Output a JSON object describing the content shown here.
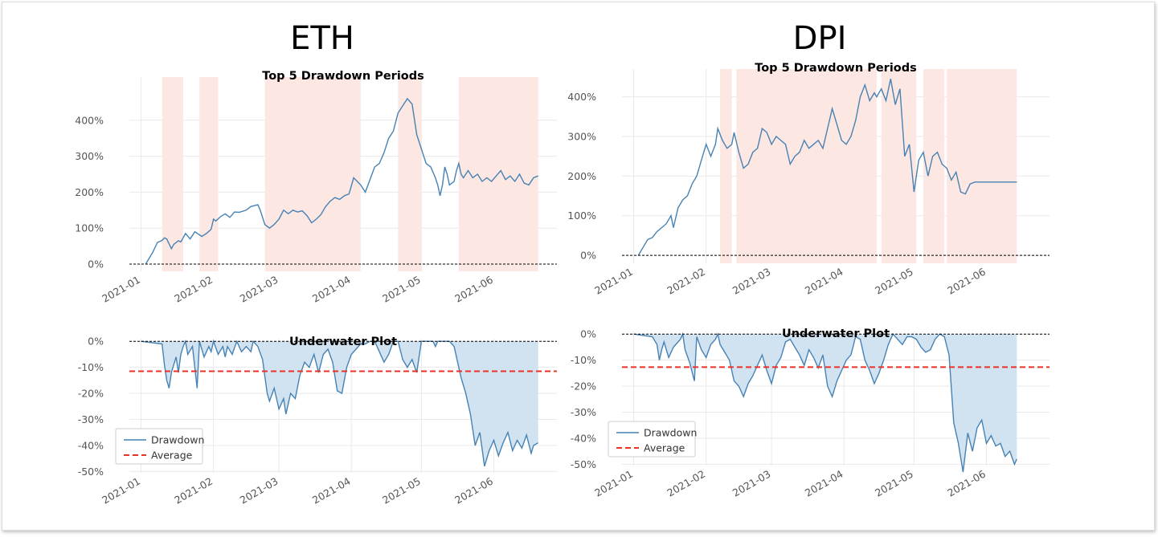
{
  "chart_data": [
    {
      "asset": "ETH",
      "top": {
        "type": "line",
        "title": "Top 5 Drawdown Periods",
        "ylim": [
          -0.2,
          5.2
        ],
        "yticks": [
          0,
          1,
          2,
          3,
          4
        ],
        "ytick_labels": [
          "0%",
          "100%",
          "200%",
          "300%",
          "400%"
        ],
        "xticks": [
          0,
          31,
          59,
          90,
          120,
          151
        ],
        "xtick_labels": [
          "2021-01",
          "2021-02",
          "2021-03",
          "2021-04",
          "2021-05",
          "2021-06"
        ],
        "xlim": [
          -5,
          178
        ],
        "grid": true,
        "baseline": 0,
        "drawdown_periods": [
          [
            9,
            18
          ],
          [
            25,
            33
          ],
          [
            53,
            94
          ],
          [
            110,
            120
          ],
          [
            136,
            170
          ]
        ],
        "x": [
          2,
          5,
          7,
          9,
          10,
          11,
          13,
          14,
          16,
          17,
          18,
          19,
          21,
          23,
          26,
          28,
          30,
          31,
          32,
          34,
          36,
          38,
          40,
          42,
          45,
          47,
          50,
          51,
          53,
          55,
          57,
          59,
          61,
          63,
          65,
          67,
          69,
          71,
          73,
          75,
          77,
          79,
          81,
          83,
          85,
          87,
          89,
          91,
          94,
          96,
          98,
          100,
          102,
          104,
          106,
          108,
          110,
          112,
          114,
          116,
          118,
          120,
          122,
          124,
          126,
          127,
          128,
          129,
          130,
          131,
          132,
          134,
          135,
          136,
          137,
          138,
          140,
          142,
          144,
          146,
          148,
          150,
          152,
          154,
          156,
          158,
          160,
          162,
          164,
          166,
          168,
          170
        ],
        "y": [
          0,
          0.33,
          0.6,
          0.66,
          0.73,
          0.7,
          0.43,
          0.55,
          0.65,
          0.62,
          0.73,
          0.85,
          0.7,
          0.9,
          0.77,
          0.85,
          0.97,
          1.25,
          1.2,
          1.32,
          1.4,
          1.3,
          1.45,
          1.44,
          1.5,
          1.6,
          1.65,
          1.5,
          1.1,
          1.0,
          1.1,
          1.25,
          1.5,
          1.4,
          1.5,
          1.45,
          1.48,
          1.35,
          1.15,
          1.25,
          1.38,
          1.6,
          1.75,
          1.85,
          1.8,
          1.9,
          1.95,
          2.4,
          2.2,
          2.0,
          2.35,
          2.7,
          2.8,
          3.1,
          3.5,
          3.7,
          4.2,
          4.4,
          4.6,
          4.45,
          3.6,
          3.2,
          2.8,
          2.7,
          2.4,
          2.2,
          1.9,
          2.2,
          2.7,
          2.5,
          2.2,
          2.3,
          2.6,
          2.8,
          2.5,
          2.4,
          2.6,
          2.4,
          2.5,
          2.3,
          2.4,
          2.3,
          2.45,
          2.6,
          2.35,
          2.45,
          2.3,
          2.5,
          2.25,
          2.2,
          2.4,
          2.45
        ],
        "color": "#4682b4",
        "band_color": "#fde7e3"
      },
      "bottom": {
        "type": "area",
        "title": "Underwater Plot",
        "ylim": [
          -0.505,
          0.01
        ],
        "yticks": [
          0,
          -0.1,
          -0.2,
          -0.3,
          -0.4,
          -0.5
        ],
        "ytick_labels": [
          "0%",
          "-10%",
          "-20%",
          "-30%",
          "-40%",
          "-50%"
        ],
        "xticks": [
          0,
          31,
          59,
          90,
          120,
          151
        ],
        "xtick_labels": [
          "2021-01",
          "2021-02",
          "2021-03",
          "2021-04",
          "2021-05",
          "2021-06"
        ],
        "xlim": [
          -5,
          178
        ],
        "grid": true,
        "average": -0.115,
        "legend": [
          "Drawdown",
          "Average"
        ],
        "legend_loc": "lower left",
        "x": [
          0,
          9,
          10,
          11,
          12,
          13,
          15,
          16,
          17,
          18,
          19,
          20,
          22,
          24,
          25,
          27,
          29,
          30,
          31,
          33,
          35,
          36,
          37,
          39,
          41,
          43,
          45,
          47,
          48,
          50,
          52,
          54,
          55,
          57,
          59,
          61,
          62,
          64,
          66,
          68,
          70,
          72,
          74,
          76,
          78,
          80,
          82,
          84,
          86,
          88,
          90,
          92,
          94,
          96,
          98,
          100,
          102,
          104,
          106,
          108,
          110,
          112,
          114,
          116,
          118,
          120,
          121,
          122,
          125,
          126,
          127,
          128,
          130,
          132,
          134,
          136,
          137,
          139,
          141,
          143,
          145,
          147,
          149,
          151,
          153,
          155,
          157,
          159,
          161,
          163,
          165,
          167,
          168,
          170
        ],
        "y": [
          0,
          -0.01,
          -0.09,
          -0.15,
          -0.18,
          -0.12,
          -0.06,
          -0.12,
          -0.05,
          -0.02,
          0,
          -0.05,
          -0.02,
          -0.18,
          0,
          -0.06,
          -0.02,
          -0.04,
          0,
          -0.05,
          -0.02,
          -0.06,
          -0.02,
          -0.05,
          0,
          -0.04,
          -0.02,
          -0.04,
          0,
          -0.02,
          -0.07,
          -0.2,
          -0.23,
          -0.18,
          -0.26,
          -0.22,
          -0.28,
          -0.2,
          -0.22,
          -0.13,
          -0.08,
          -0.1,
          -0.05,
          -0.12,
          -0.05,
          -0.03,
          -0.08,
          -0.19,
          -0.2,
          -0.1,
          -0.05,
          -0.03,
          -0.01,
          -0.01,
          0,
          0,
          -0.04,
          -0.08,
          -0.05,
          0,
          0,
          -0.07,
          -0.1,
          -0.07,
          -0.12,
          0,
          0,
          0,
          0,
          -0.02,
          0,
          0,
          0,
          0,
          -0.02,
          -0.1,
          -0.14,
          -0.2,
          -0.28,
          -0.4,
          -0.35,
          -0.48,
          -0.42,
          -0.38,
          -0.44,
          -0.39,
          -0.35,
          -0.42,
          -0.38,
          -0.41,
          -0.36,
          -0.43,
          -0.4,
          -0.39
        ],
        "color": "#4682b4",
        "fill_color": "#cfe0ef",
        "average_color": "#ee3124"
      }
    },
    {
      "asset": "DPI",
      "top": {
        "type": "line",
        "title": "Top 5 Drawdown Periods",
        "ylim": [
          -0.2,
          4.7
        ],
        "yticks": [
          0,
          1,
          2,
          3,
          4
        ],
        "ytick_labels": [
          "0%",
          "100%",
          "200%",
          "300%",
          "400%"
        ],
        "xticks": [
          0,
          31,
          59,
          90,
          120,
          151
        ],
        "xtick_labels": [
          "2021-01",
          "2021-02",
          "2021-03",
          "2021-04",
          "2021-05",
          "2021-06"
        ],
        "xlim": [
          -5,
          178
        ],
        "grid": true,
        "baseline": 0,
        "drawdown_periods": [
          [
            37,
            42
          ],
          [
            44,
            104
          ],
          [
            106,
            121
          ],
          [
            124,
            133
          ],
          [
            134,
            164
          ]
        ],
        "x": [
          2,
          4,
          6,
          8,
          10,
          12,
          14,
          16,
          17,
          19,
          21,
          23,
          25,
          27,
          29,
          31,
          33,
          35,
          36,
          38,
          40,
          42,
          43,
          45,
          47,
          49,
          51,
          53,
          55,
          57,
          59,
          61,
          63,
          65,
          67,
          69,
          71,
          73,
          75,
          77,
          79,
          81,
          83,
          85,
          87,
          89,
          91,
          93,
          95,
          97,
          99,
          101,
          103,
          104,
          106,
          108,
          110,
          112,
          114,
          116,
          118,
          120,
          122,
          124,
          126,
          128,
          130,
          132,
          134,
          136,
          138,
          140,
          142,
          144,
          146,
          148,
          150,
          152,
          154,
          156,
          158,
          160,
          162,
          164
        ],
        "y": [
          0,
          0.2,
          0.4,
          0.45,
          0.6,
          0.7,
          0.8,
          1.0,
          0.7,
          1.2,
          1.4,
          1.5,
          1.8,
          2.0,
          2.4,
          2.8,
          2.5,
          2.8,
          3.2,
          2.9,
          2.7,
          2.8,
          3.1,
          2.6,
          2.2,
          2.3,
          2.6,
          2.7,
          3.2,
          3.1,
          2.8,
          3.0,
          2.9,
          2.8,
          2.3,
          2.5,
          2.6,
          2.9,
          2.7,
          2.8,
          2.9,
          2.7,
          3.2,
          3.7,
          3.3,
          2.9,
          2.8,
          3.0,
          3.4,
          4.0,
          4.3,
          3.9,
          4.1,
          4.0,
          4.2,
          3.9,
          4.45,
          3.8,
          4.2,
          2.5,
          2.8,
          1.6,
          2.4,
          2.6,
          2.0,
          2.5,
          2.6,
          2.3,
          2.2,
          1.9,
          2.1,
          1.6,
          1.55,
          1.8,
          1.85,
          1.85,
          1.85,
          1.85,
          1.85,
          1.85,
          1.85,
          1.85,
          1.85,
          1.85
        ],
        "color": "#4682b4",
        "band_color": "#fde7e3"
      },
      "bottom": {
        "type": "area",
        "title": "Underwater Plot",
        "ylim": [
          -0.505,
          0.01
        ],
        "yticks": [
          0,
          -0.1,
          -0.2,
          -0.3,
          -0.4,
          -0.5
        ],
        "ytick_labels": [
          "0%",
          "-10%",
          "-20%",
          "-30%",
          "-40%",
          "-50%"
        ],
        "xticks": [
          0,
          31,
          59,
          90,
          120,
          151
        ],
        "xtick_labels": [
          "2021-01",
          "2021-02",
          "2021-03",
          "2021-04",
          "2021-05",
          "2021-06"
        ],
        "xlim": [
          -5,
          178
        ],
        "grid": true,
        "average": -0.127,
        "legend": [
          "Drawdown",
          "Average"
        ],
        "legend_loc": "lower left",
        "x": [
          0,
          8,
          10,
          11,
          12,
          13,
          15,
          17,
          19,
          20,
          21,
          22,
          24,
          26,
          27,
          29,
          31,
          33,
          35,
          36,
          37,
          39,
          41,
          43,
          45,
          47,
          49,
          51,
          53,
          55,
          57,
          59,
          61,
          63,
          65,
          67,
          69,
          71,
          73,
          75,
          77,
          79,
          81,
          83,
          85,
          87,
          89,
          91,
          93,
          95,
          97,
          99,
          101,
          103,
          105,
          107,
          109,
          111,
          113,
          115,
          117,
          119,
          121,
          123,
          125,
          127,
          129,
          131,
          133,
          135,
          137,
          139,
          141,
          143,
          145,
          147,
          149,
          151,
          153,
          155,
          157,
          159,
          161,
          163,
          164
        ],
        "y": [
          0,
          -0.01,
          -0.04,
          -0.1,
          -0.06,
          -0.03,
          -0.09,
          -0.05,
          -0.03,
          -0.02,
          0,
          -0.06,
          -0.11,
          -0.18,
          -0.01,
          -0.06,
          -0.09,
          -0.04,
          -0.02,
          0,
          -0.04,
          -0.07,
          -0.1,
          -0.18,
          -0.2,
          -0.24,
          -0.19,
          -0.16,
          -0.12,
          -0.08,
          -0.14,
          -0.19,
          -0.12,
          -0.09,
          -0.03,
          -0.02,
          -0.05,
          -0.08,
          -0.12,
          -0.06,
          -0.09,
          -0.13,
          -0.08,
          -0.2,
          -0.24,
          -0.18,
          -0.14,
          -0.1,
          -0.08,
          -0.01,
          -0.02,
          -0.1,
          -0.14,
          -0.19,
          -0.15,
          -0.1,
          -0.04,
          0,
          -0.02,
          -0.04,
          -0.01,
          -0.01,
          -0.02,
          -0.05,
          -0.07,
          -0.06,
          -0.02,
          0,
          -0.01,
          -0.08,
          -0.34,
          -0.42,
          -0.53,
          -0.38,
          -0.45,
          -0.36,
          -0.33,
          -0.42,
          -0.39,
          -0.43,
          -0.42,
          -0.47,
          -0.45,
          -0.5,
          -0.48
        ],
        "color": "#4682b4",
        "fill_color": "#cfe0ef",
        "average_color": "#ee3124"
      }
    }
  ]
}
